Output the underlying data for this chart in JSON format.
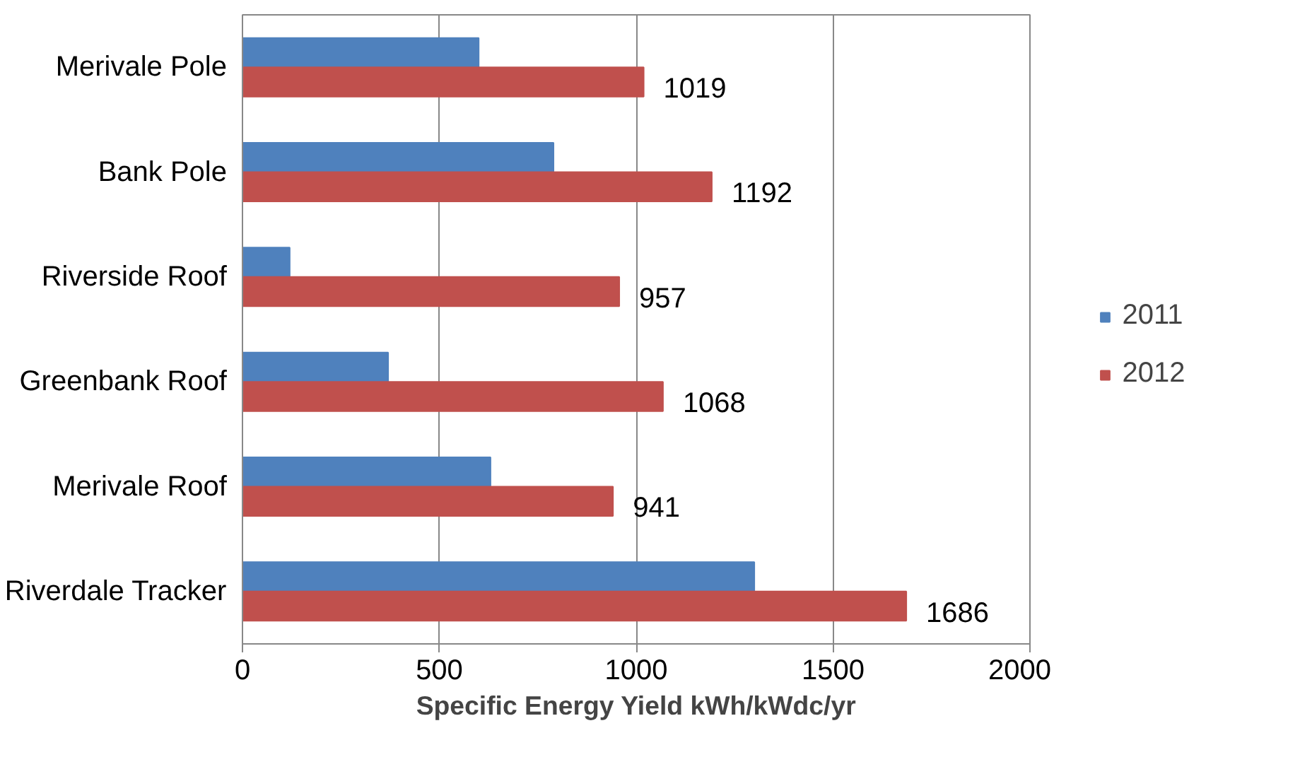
{
  "chart_data": {
    "type": "bar",
    "orientation": "horizontal",
    "xlabel": "Specific Energy Yield kWh/kWdc/yr",
    "categories": [
      "Merivale Pole",
      "Bank Pole",
      "Riverside Roof",
      "Greenbank Roof",
      "Merivale Roof",
      "Riverdale Tracker"
    ],
    "series": [
      {
        "name": "2011",
        "color": "#4f81bd",
        "values": [
          600,
          790,
          120,
          370,
          630,
          1300
        ]
      },
      {
        "name": "2012",
        "color": "#c0504d",
        "values": [
          1019,
          1192,
          957,
          1068,
          941,
          1686
        ],
        "value_labels": [
          "1019",
          "1192",
          "957",
          "1068",
          "941",
          "1686"
        ]
      }
    ],
    "xlim": [
      0,
      2000
    ],
    "xticks": [
      0,
      500,
      1000,
      1500,
      2000
    ],
    "grid": "x",
    "legend": "right"
  }
}
